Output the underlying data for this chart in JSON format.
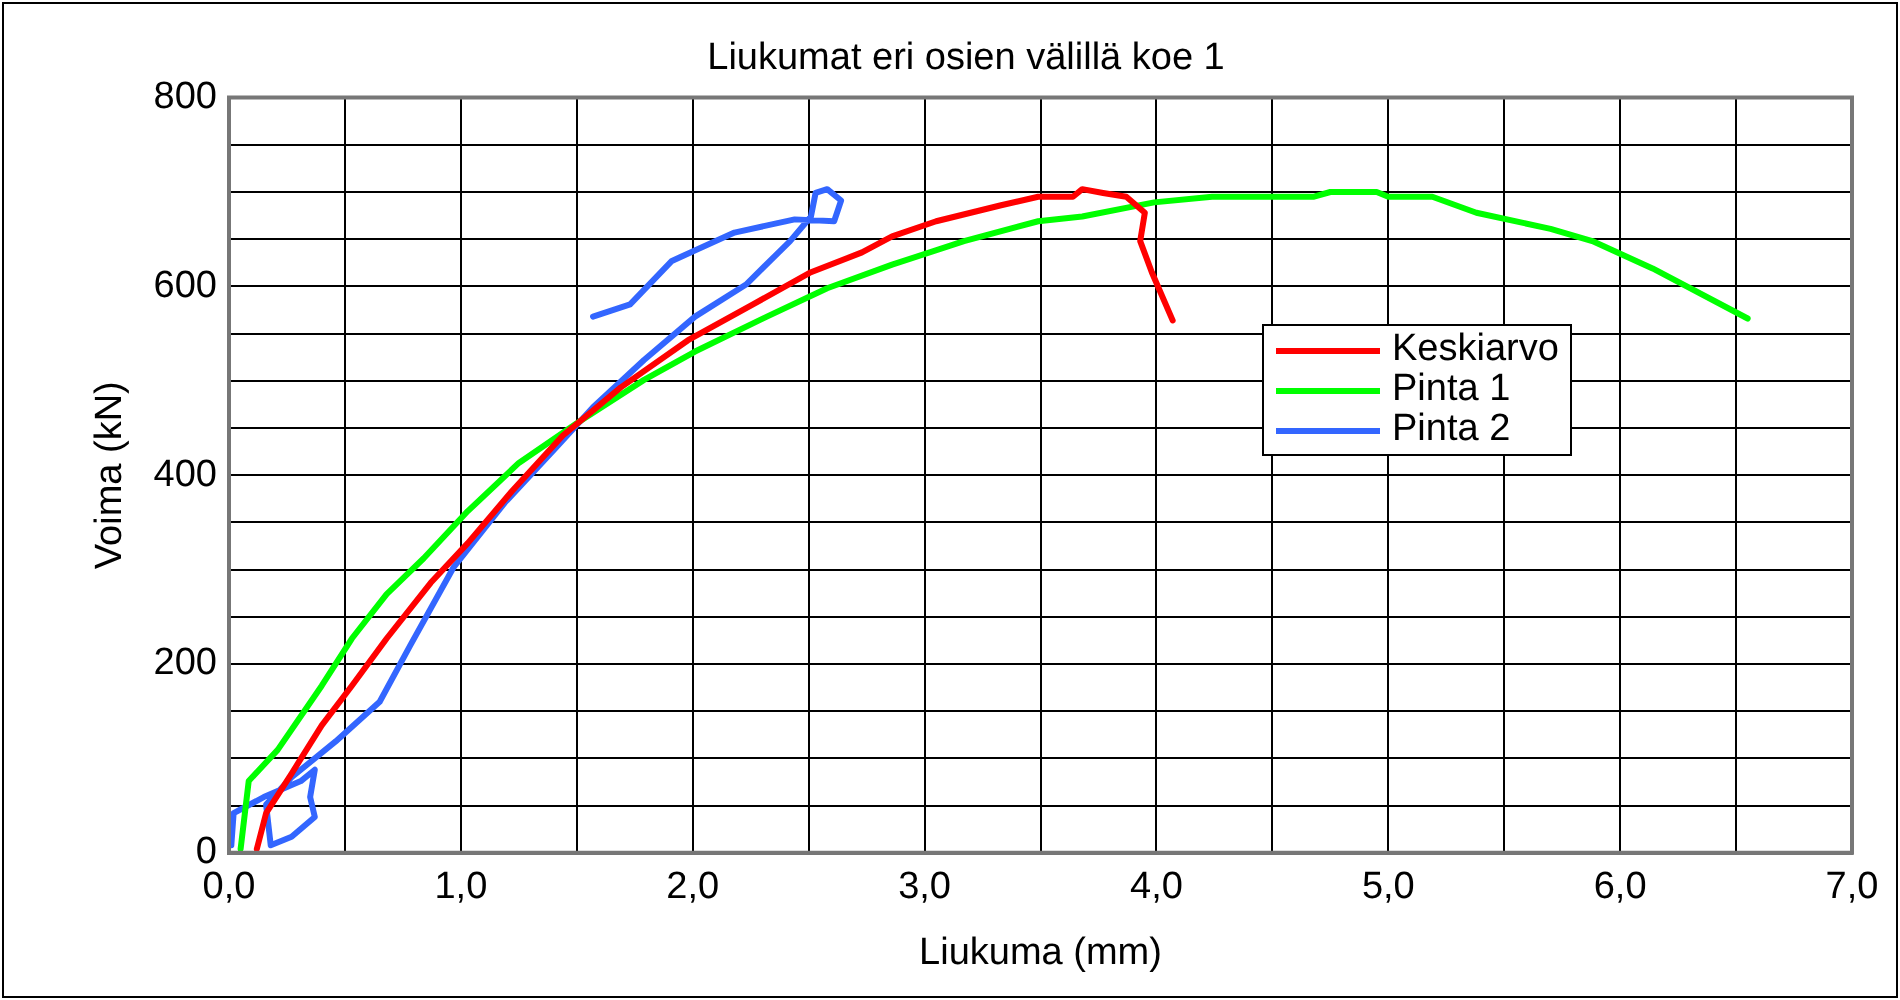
{
  "chart_data": {
    "type": "line",
    "title": "Liukumat eri osien välillä koe 1",
    "xlabel": "Liukuma (mm)",
    "ylabel": "Voima (kN)",
    "xlim": [
      0,
      7
    ],
    "ylim": [
      0,
      800
    ],
    "xticks": [
      {
        "value": 0,
        "label": "0,0"
      },
      {
        "value": 0.5,
        "label": null
      },
      {
        "value": 1,
        "label": "1,0"
      },
      {
        "value": 1.5,
        "label": null
      },
      {
        "value": 2,
        "label": "2,0"
      },
      {
        "value": 2.5,
        "label": null
      },
      {
        "value": 3,
        "label": "3,0"
      },
      {
        "value": 3.5,
        "label": null
      },
      {
        "value": 4,
        "label": "4,0"
      },
      {
        "value": 4.5,
        "label": null
      },
      {
        "value": 5,
        "label": "5,0"
      },
      {
        "value": 5.5,
        "label": null
      },
      {
        "value": 6,
        "label": "6,0"
      },
      {
        "value": 6.5,
        "label": null
      },
      {
        "value": 7,
        "label": "7,0"
      }
    ],
    "yticks": [
      0,
      {
        "value": 50,
        "label": null
      },
      {
        "value": 100,
        "label": null
      },
      {
        "value": 150,
        "label": null
      },
      200,
      {
        "value": 250,
        "label": null
      },
      {
        "value": 300,
        "label": null
      },
      {
        "value": 350,
        "label": null
      },
      400,
      {
        "value": 450,
        "label": null
      },
      {
        "value": 500,
        "label": null
      },
      {
        "value": 550,
        "label": null
      },
      600,
      {
        "value": 650,
        "label": null
      },
      {
        "value": 700,
        "label": null
      },
      {
        "value": 750,
        "label": null
      },
      800
    ],
    "grid": true,
    "legend": "right",
    "marker": "none",
    "line_style": "solid",
    "series": [
      {
        "name": "Keskiarvo",
        "color": "#ff0000",
        "x": [
          0.12,
          0.16,
          0.27,
          0.4,
          0.53,
          0.68,
          0.87,
          1.03,
          1.22,
          1.44,
          1.69,
          1.98,
          2.26,
          2.51,
          2.73,
          2.86,
          3.05,
          3.33,
          3.49,
          3.64,
          3.68,
          3.77,
          3.87,
          3.95,
          3.93,
          3.98,
          4.07
        ],
        "values": [
          4,
          42,
          84,
          135,
          177,
          227,
          286,
          328,
          383,
          442,
          493,
          543,
          581,
          615,
          636,
          653,
          669,
          686,
          695,
          695,
          703,
          699,
          695,
          678,
          648,
          615,
          564
        ]
      },
      {
        "name": "Pinta 1",
        "color": "#00ff00",
        "x": [
          0.05,
          0.085,
          0.21,
          0.4,
          0.53,
          0.68,
          0.84,
          1.03,
          1.25,
          1.5,
          1.79,
          2.01,
          2.32,
          2.58,
          2.86,
          3.17,
          3.49,
          3.68,
          3.99,
          4.24,
          4.68,
          4.75,
          4.95,
          5,
          5.19,
          5.38,
          5.7,
          5.88,
          6.14,
          6.55
        ],
        "values": [
          4,
          76,
          109,
          177,
          227,
          274,
          312,
          362,
          413,
          455,
          501,
          531,
          568,
          598,
          623,
          648,
          669,
          674,
          689,
          695,
          695,
          700,
          700,
          695,
          695,
          678,
          661,
          648,
          619,
          566
        ]
      },
      {
        "name": "Pinta 2",
        "color": "#3366ff",
        "x": [
          0.01,
          0.02,
          0.15,
          0.31,
          0.37,
          0.35,
          0.37,
          0.27,
          0.18,
          0.16,
          0.27,
          0.46,
          0.65,
          0.78,
          0.97,
          1.19,
          1.41,
          1.57,
          1.79,
          2.01,
          2.23,
          2.42,
          2.51,
          2.53,
          2.58,
          2.64,
          2.61,
          2.44,
          2.18,
          1.91,
          1.73,
          1.57
        ],
        "values": [
          8,
          42,
          59,
          76,
          88,
          59,
          38,
          17,
          8,
          51,
          80,
          118,
          160,
          219,
          303,
          371,
          429,
          472,
          522,
          568,
          602,
          648,
          674,
          699,
          703,
          691,
          669,
          671,
          657,
          627,
          581,
          568
        ]
      }
    ]
  }
}
